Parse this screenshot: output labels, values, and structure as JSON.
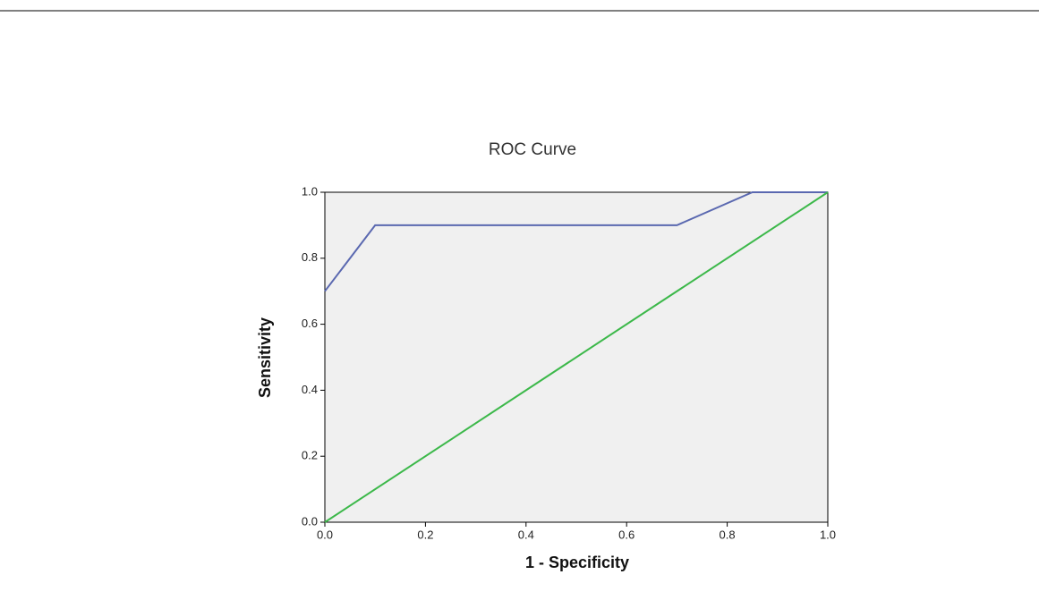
{
  "chart_data": {
    "type": "line",
    "title": "ROC Curve",
    "x_label": "1 - Specificity",
    "y_label": "Sensitivity",
    "series": [
      {
        "color": "#5a68b0",
        "x": [
          0,
          0.1,
          0.7,
          0.85,
          1
        ],
        "values": [
          0.7,
          0.9,
          0.9,
          1,
          1
        ]
      },
      {
        "color": "#3cb84a",
        "x": [
          0,
          1
        ],
        "values": [
          0,
          1
        ]
      }
    ],
    "xlim": [
      0,
      1
    ],
    "ylim": [
      0,
      1
    ],
    "xticks": [
      {
        "value": 0,
        "label": "0.0"
      },
      0.2,
      0.4,
      0.6,
      0.8,
      {
        "value": 1,
        "label": "1.0"
      }
    ],
    "yticks": [
      {
        "value": 0,
        "label": "0.0"
      },
      0.2,
      0.4,
      0.6,
      0.8,
      {
        "value": 1,
        "label": "1.0"
      }
    ]
  }
}
